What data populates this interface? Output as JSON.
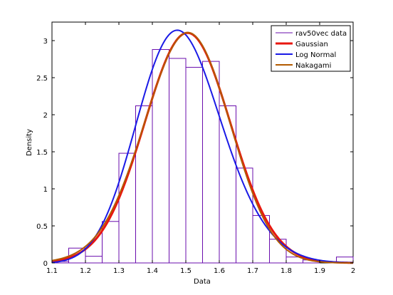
{
  "chart_data": {
    "type": "line",
    "title": "",
    "xlabel": "Data",
    "ylabel": "Density",
    "xlim": [
      1.1,
      2.0
    ],
    "ylim": [
      0,
      3.25
    ],
    "x_ticks": [
      "1.1",
      "1.2",
      "1.3",
      "1.4",
      "1.5",
      "1.6",
      "1.7",
      "1.8",
      "1.9",
      "2"
    ],
    "y_ticks": [
      "0",
      "0.5",
      "1",
      "1.5",
      "2",
      "2.5",
      "3"
    ],
    "x_tick_values": [
      1.1,
      1.2,
      1.3,
      1.4,
      1.5,
      1.6,
      1.7,
      1.8,
      1.9,
      2.0
    ],
    "y_tick_values": [
      0,
      0.5,
      1,
      1.5,
      2,
      2.5,
      3
    ],
    "grid": false,
    "legend_position": "top-right",
    "histogram": {
      "name": "rav50vec data",
      "color": "#6a0dad",
      "bin_edges": [
        1.1,
        1.15,
        1.2,
        1.25,
        1.3,
        1.35,
        1.4,
        1.45,
        1.5,
        1.55,
        1.6,
        1.65,
        1.7,
        1.75,
        1.8,
        1.85,
        1.9,
        1.95,
        2.0
      ],
      "densities": [
        0.02,
        0.2,
        0.09,
        0.56,
        1.48,
        2.12,
        2.88,
        2.76,
        2.64,
        2.72,
        2.12,
        1.28,
        0.64,
        0.32,
        0.08,
        0.04,
        0.0,
        0.08
      ]
    },
    "series": [
      {
        "name": "Gaussian",
        "color": "#e8170f",
        "width": 3,
        "mean": 1.505,
        "sd": 0.1285
      },
      {
        "name": "Log Normal",
        "color": "#1a1ae6",
        "width": 2,
        "mean": 1.49,
        "sd": 0.128,
        "skew": 0.25
      },
      {
        "name": "Nakagami",
        "color": "#b35a00",
        "width": 2,
        "mean": 1.5,
        "sd": 0.1285,
        "skew": -0.1
      }
    ]
  }
}
